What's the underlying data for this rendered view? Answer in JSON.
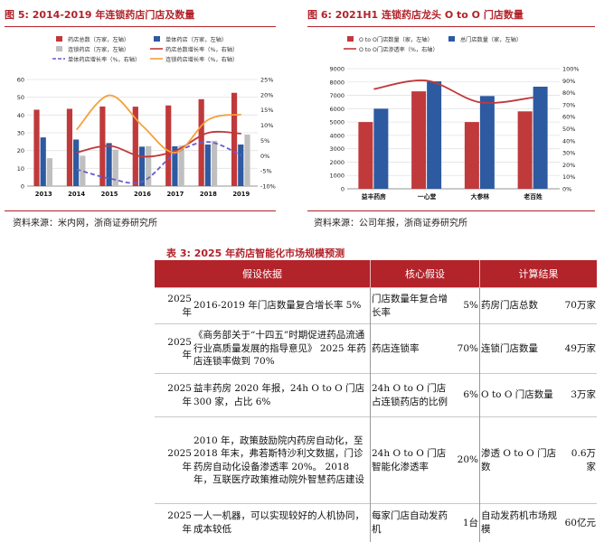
{
  "figure5": {
    "title": "图 5: 2014-2019 年连锁药店门店及数量",
    "source": "资料来源：米内网，浙商证券研究所",
    "legend": [
      "药店总数（万家，左轴）",
      "单体药店（万家，左轴）",
      "连锁药店（万家，左轴）",
      "药店总数增长率（%，右轴）",
      "单体药店增长率（%，右轴）",
      "连锁药店增长率（%，右轴）"
    ],
    "left_ticks": [
      "0",
      "10",
      "20",
      "30",
      "40",
      "50",
      "60"
    ],
    "right_ticks": [
      "-10%",
      "-5%",
      "0%",
      "5%",
      "10%",
      "15%",
      "20%",
      "25%"
    ]
  },
  "figure6": {
    "title": "图 6: 2021H1 连锁药店龙头 O to O 门店数量",
    "source": "资料来源：公司年报，浙商证券研究所",
    "legend": [
      "O to O门店数量（家，左轴）",
      "总门店数量（家，左轴）",
      "O to O门店渗透率（%，右轴）"
    ],
    "left_ticks": [
      "0",
      "1000",
      "2000",
      "3000",
      "4000",
      "5000",
      "6000",
      "7000",
      "8000",
      "9000"
    ],
    "right_ticks": [
      "0%",
      "10%",
      "20%",
      "30%",
      "40%",
      "50%",
      "60%",
      "70%",
      "80%",
      "90%",
      "100%"
    ]
  },
  "chart_data": [
    {
      "type": "bar",
      "categories": [
        "2013",
        "2014",
        "2015",
        "2016",
        "2017",
        "2018",
        "2019"
      ],
      "ylim": [
        0,
        60
      ],
      "y2lim": [
        -10,
        25
      ],
      "series": [
        {
          "name": "药店总数（万家，左轴）",
          "axis": "left",
          "kind": "bar",
          "color": "#c0393b",
          "values": [
            43,
            43.5,
            44.8,
            44.7,
            45.4,
            48.9,
            52.5
          ]
        },
        {
          "name": "单体药店（万家，左轴）",
          "axis": "left",
          "kind": "bar",
          "color": "#2d5aa0",
          "values": [
            27.4,
            26.2,
            24.2,
            22.2,
            22.4,
            23.4,
            23.4
          ]
        },
        {
          "name": "连锁药店（万家，左轴）",
          "axis": "left",
          "kind": "bar",
          "color": "#bfbfbf",
          "values": [
            15.7,
            17.1,
            20.5,
            22.5,
            22.8,
            25.5,
            29.0
          ]
        },
        {
          "name": "药店总数增长率（%，右轴）",
          "axis": "right",
          "kind": "line",
          "color": "#c0393b",
          "values": [
            null,
            1.0,
            3.2,
            -0.3,
            1.6,
            7.5,
            7.2
          ]
        },
        {
          "name": "单体药店增长率（%，右轴）",
          "axis": "right",
          "kind": "line",
          "dash": true,
          "color": "#6a5acd",
          "values": [
            null,
            -4.5,
            -7.5,
            -8.5,
            0.7,
            4.5,
            0.1
          ]
        },
        {
          "name": "连锁药店增长率（%，右轴）",
          "axis": "right",
          "kind": "line",
          "color": "#f5a03a",
          "values": [
            null,
            8.5,
            19.8,
            9.8,
            1.0,
            11.8,
            13.5
          ]
        }
      ]
    },
    {
      "type": "bar",
      "categories": [
        "益丰药房",
        "一心堂",
        "大参林",
        "老百姓"
      ],
      "ylim": [
        0,
        9000
      ],
      "y2lim": [
        0,
        100
      ],
      "series": [
        {
          "name": "O to O门店数量（家，左轴）",
          "axis": "left",
          "kind": "bar",
          "color": "#c0393b",
          "values": [
            5000,
            7300,
            5000,
            5800
          ]
        },
        {
          "name": "总门店数量（家，左轴）",
          "axis": "left",
          "kind": "bar",
          "color": "#2d5aa0",
          "values": [
            6000,
            8050,
            6950,
            7650
          ]
        },
        {
          "name": "O to O门店渗透率（%，右轴）",
          "axis": "right",
          "kind": "line",
          "color": "#c0393b",
          "values": [
            83,
            90,
            72,
            76
          ]
        }
      ]
    }
  ],
  "table3": {
    "title": "表 3: 2025 年药店智能化市场规模预测",
    "headers": [
      "假设依据",
      "核心假设",
      "计算结果"
    ],
    "rows": [
      {
        "year": "2025 年",
        "basis": "2016-2019 年门店数量复合增长率 5%",
        "assume": "门店数量年复合增长率",
        "pct": "5%",
        "item": "药房门店总数",
        "result": "70万家"
      },
      {
        "year": "2025 年",
        "basis": "《商务部关于“十四五”时期促进药品流通行业高质量发展的指导意见》 2025 年药店连锁率做到 70%",
        "assume": "药店连锁率",
        "pct": "70%",
        "item": "连锁门店数量",
        "result": "49万家"
      },
      {
        "year": "2025 年",
        "basis": "益丰药房 2020 年报，24h O to O 门店 300 家，占比 6%",
        "assume": "24h O to O 门店占连锁药店的比例",
        "pct": "6%",
        "item": "O to O 门店数量",
        "result": "3万家"
      },
      {
        "year": "2025 年",
        "basis": "2010 年，政策鼓励院内药房自动化，至 2018 年末，弗若斯特沙利文数据，门诊药房自动化设备渗透率 20%。 2018 年，互联医疗政策推动院外智慧药店建设",
        "assume": "24h O to O 门店智能化渗透率",
        "pct": "20%",
        "item": "渗透 O to O 门店数",
        "result": "0.6万家"
      },
      {
        "year": "2025 年",
        "basis": "一人一机器，可以实现较好的人机协同，成本较低",
        "assume": "每家门店自动发药机",
        "pct": "1台",
        "item": "自动发药机市场规模",
        "result": "60亿元"
      }
    ]
  }
}
